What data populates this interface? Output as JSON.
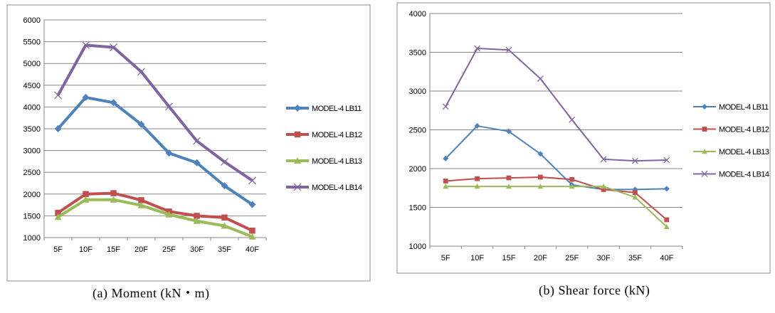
{
  "chart_data": [
    {
      "type": "line",
      "caption": "(a)  Moment  (kN・m)",
      "categories": [
        "5F",
        "10F",
        "15F",
        "20F",
        "25F",
        "30F",
        "35F",
        "40F"
      ],
      "ylim": [
        1000,
        6000
      ],
      "yticks": [
        1000,
        1500,
        2000,
        2500,
        3000,
        3500,
        4000,
        4500,
        5000,
        5500,
        6000
      ],
      "grid": true,
      "legend": "right",
      "series": [
        {
          "name": "MODEL-4 LB11",
          "color": "#4f81bd",
          "marker": "diamond",
          "values": [
            3500,
            4220,
            4100,
            3600,
            2940,
            2720,
            2190,
            1760
          ]
        },
        {
          "name": "MODEL-4 LB12",
          "color": "#c0504d",
          "marker": "square",
          "values": [
            1570,
            2000,
            2020,
            1860,
            1600,
            1500,
            1460,
            1160
          ]
        },
        {
          "name": "MODEL-4 LB13",
          "color": "#9bbb59",
          "marker": "triangle",
          "values": [
            1470,
            1870,
            1870,
            1740,
            1530,
            1380,
            1270,
            1020
          ]
        },
        {
          "name": "MODEL-4 LB14",
          "color": "#8064a2",
          "marker": "x",
          "values": [
            4270,
            5420,
            5370,
            4810,
            4010,
            3220,
            2740,
            2310
          ]
        }
      ]
    },
    {
      "type": "line",
      "caption": "(b)  Shear  force  (kN)",
      "categories": [
        "5F",
        "10F",
        "15F",
        "20F",
        "25F",
        "30F",
        "35F",
        "40F"
      ],
      "ylim": [
        1000,
        4000
      ],
      "yticks": [
        1000,
        1500,
        2000,
        2500,
        3000,
        3500,
        4000
      ],
      "grid": true,
      "legend": "right",
      "series": [
        {
          "name": "MODEL-4 LB11",
          "color": "#4f81bd",
          "marker": "diamond",
          "values": [
            2130,
            2550,
            2480,
            2190,
            1790,
            1730,
            1730,
            1740
          ]
        },
        {
          "name": "MODEL-4 LB12",
          "color": "#c0504d",
          "marker": "square",
          "values": [
            1840,
            1870,
            1880,
            1890,
            1860,
            1730,
            1690,
            1340
          ]
        },
        {
          "name": "MODEL-4 LB13",
          "color": "#9bbb59",
          "marker": "triangle",
          "values": [
            1770,
            1770,
            1770,
            1770,
            1770,
            1770,
            1630,
            1250
          ]
        },
        {
          "name": "MODEL-4 LB14",
          "color": "#8064a2",
          "marker": "x",
          "values": [
            2800,
            3550,
            3530,
            3160,
            2630,
            2120,
            2100,
            2110
          ]
        }
      ]
    }
  ]
}
